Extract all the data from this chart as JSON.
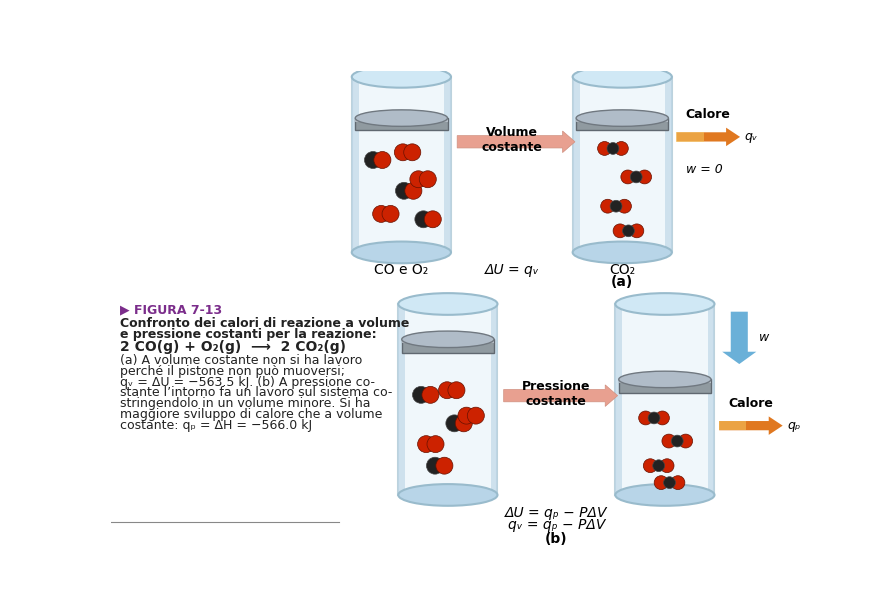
{
  "bg_color": "#ffffff",
  "fig_label_color": "#7b2d8b",
  "fig_label": "FIGURA 7-13",
  "label_CO_O2": "CO e O₂",
  "label_CO2_a": "CO₂",
  "label_delta_U_qV": "ΔU = qᵥ",
  "label_a": "(a)",
  "label_b": "(b)",
  "label_volume_costante": "Volume\ncostante",
  "label_pressione_costante": "Pressione\ncostante",
  "label_calore_a": "Calore",
  "label_calore_b": "Calore",
  "label_qV": "qᵥ",
  "label_qP": "qₚ",
  "label_w0": "w = 0",
  "label_w": "w",
  "label_delta_b1": "ΔU = qₚ − PΔV",
  "label_delta_b2": "qᵥ = qₚ − PΔV",
  "molecule_red": "#cc2200",
  "molecule_black": "#222222",
  "arrow_reaction_color": "#e8a090",
  "arrow_heat_color": "#e07820",
  "arrow_work_color": "#6ab0d8",
  "fig_label_text": "▶ FIGURA 7-13",
  "caption_line1": "Confronto dei calori di reazione a volume",
  "caption_line2": "e pressione costanti per la reazione:",
  "caption_eq": "2 CO(g) + O₂(g)  ⟶  2 CO₂(g)",
  "caption_n1": "(a) A volume costante ",
  "caption_n1i": "non",
  "caption_n1b": " si ha lavoro",
  "caption_n2": "perché il pistone non può muoversi;",
  "caption_n3a": "q",
  "caption_n3b": " = ΔU = −563.5 kJ. (b) A pressione co-",
  "caption_n4": "stante l’intorno fa un lavoro sul sistema co-",
  "caption_n5": "stringendolo in un volume minore. Si ha",
  "caption_n6": "maggiore sviluppo di calore che a volume",
  "caption_n7a": "costante: q",
  "caption_n7b": " = ΔH = −566.0 kJ"
}
